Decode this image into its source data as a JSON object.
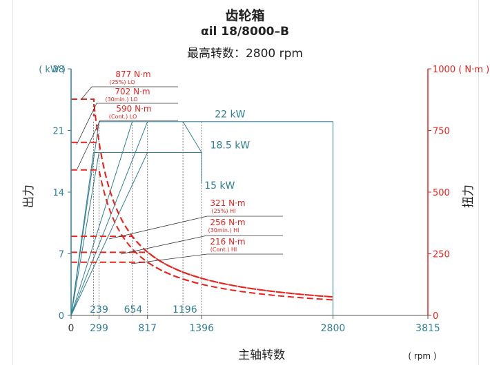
{
  "chart_data": {
    "type": "line",
    "title": "齿轮箱",
    "subtitle": "αil 18/8000–B",
    "subtitle2": "最高转数：2800 rpm",
    "xlabel": "主轴转数",
    "xunit": "( rpm )",
    "ylabel_left": "出力",
    "yunit_left": "( kW )",
    "ylabel_right": "扭力",
    "yunit_right": "1000 ( N·m )",
    "xlim": [
      0,
      3815
    ],
    "ylim_left": [
      0,
      28
    ],
    "ylim_right": [
      0,
      1000
    ],
    "x_ticks": [
      "0",
      "299",
      "817",
      "1396",
      "2800",
      "3815"
    ],
    "y_ticks_left": [
      "0",
      "7",
      "14",
      "21",
      "28"
    ],
    "y_ticks_right": [
      "0",
      "250",
      "500",
      "750"
    ],
    "power_lines": [
      {
        "label": "22 kW",
        "value": 22
      },
      {
        "label": "18.5 kW",
        "value": 18.5
      },
      {
        "label": "15 kW",
        "value": 15
      }
    ],
    "speed_markers": [
      "239",
      "654",
      "1196"
    ],
    "torque_labels": [
      {
        "main": "877 N·m",
        "sub": "(25%) LO",
        "value": 877
      },
      {
        "main": "702 N·m",
        "sub": "(30min.) LO",
        "value": 702
      },
      {
        "main": "590 N·m",
        "sub": "(Cont.) LO",
        "value": 590
      },
      {
        "main": "321 N·m",
        "sub": "(25%) HI",
        "value": 321
      },
      {
        "main": "256 N·m",
        "sub": "(30min.) HI",
        "value": 256
      },
      {
        "main": "216 N·m",
        "sub": "(Cont.) HI",
        "value": 216
      }
    ],
    "series": [
      {
        "name": "877 N·m (25%) LO",
        "max_power_kW": 22,
        "torque_Nm": 877
      },
      {
        "name": "702 N·m (30min.) LO",
        "max_power_kW": 22,
        "torque_Nm": 702
      },
      {
        "name": "590 N·m (Cont.) LO",
        "max_power_kW": 18.5,
        "torque_Nm": 590
      },
      {
        "name": "321 N·m (25%) HI",
        "max_power_kW": 22,
        "torque_Nm": 321
      },
      {
        "name": "256 N·m (30min.) HI",
        "max_power_kW": 22,
        "torque_Nm": 256
      },
      {
        "name": "216 N·m (Cont.) HI",
        "max_power_kW": 18.5,
        "torque_Nm": 216
      }
    ],
    "colors": {
      "power": "#2f7f96",
      "torque": "#e8231e",
      "leader": "#333333"
    }
  }
}
